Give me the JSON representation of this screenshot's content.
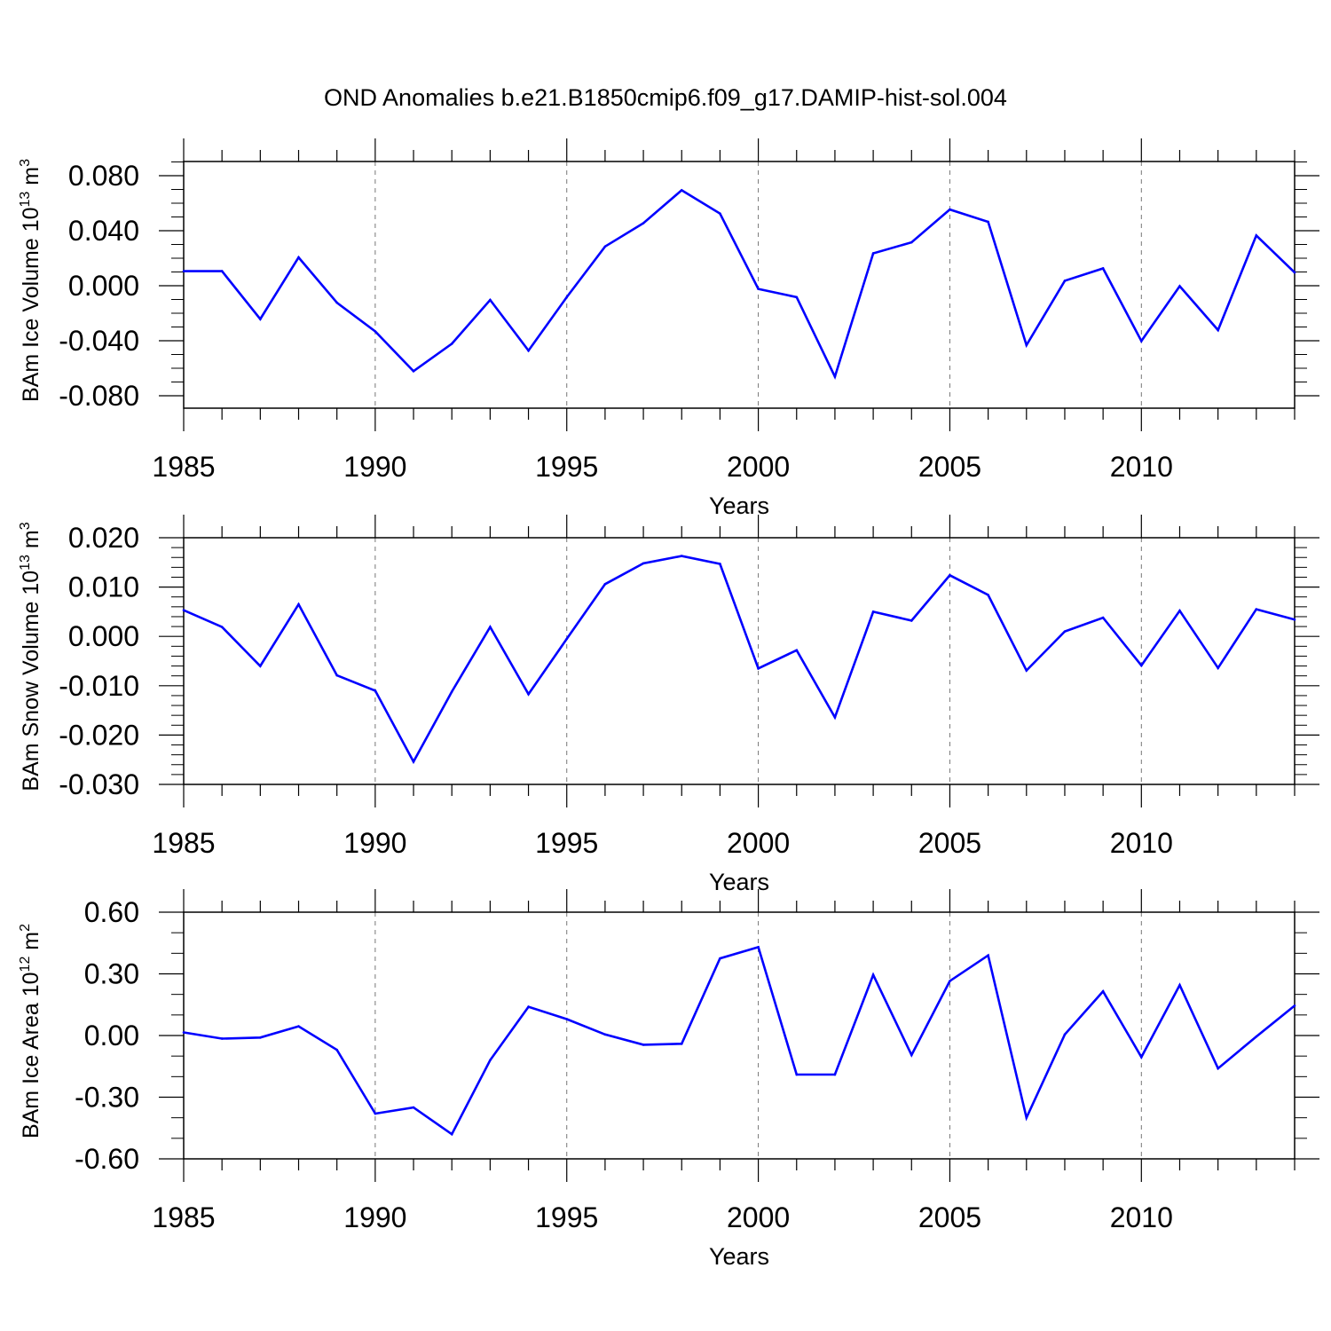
{
  "title": "OND Anomalies b.e21.B1850cmip6.f09_g17.DAMIP-hist-sol.004",
  "colors": {
    "line": "#0000ff",
    "axis": "#000000",
    "grid": "#777777"
  },
  "chart_data": [
    {
      "type": "line",
      "ylabel_main": "BAm Ice Volume 10",
      "ylabel_exp": "13",
      "ylabel_unit": " m",
      "ylabel_unit_exp": "3",
      "xlabel": "Years",
      "xlim": [
        1985,
        2014
      ],
      "ylim": [
        -0.09,
        0.09
      ],
      "xticks": [
        "1985",
        "1990",
        "1995",
        "2000",
        "2005",
        "2010"
      ],
      "yticks": [
        "0.080",
        "0.040",
        "0.000",
        "-0.040",
        "-0.080"
      ],
      "grid": "vertical dashed at labeled years",
      "series": [
        {
          "x": [
            1985,
            1986,
            1987,
            1988,
            1989,
            1990,
            1991,
            1992,
            1993,
            1994,
            1995,
            1996,
            1997,
            1998,
            1999,
            2000,
            2001,
            2002,
            2003,
            2004,
            2005,
            2006,
            2007,
            2008,
            2009,
            2010,
            2011,
            2012,
            2013,
            2014
          ],
          "values": [
            0.01,
            0.01,
            -0.025,
            0.02,
            -0.013,
            -0.034,
            -0.063,
            -0.043,
            -0.011,
            -0.048,
            -0.009,
            0.028,
            0.045,
            0.069,
            0.052,
            -0.003,
            -0.009,
            -0.067,
            0.023,
            0.031,
            0.055,
            0.046,
            -0.044,
            0.003,
            0.012,
            -0.041,
            -0.001,
            -0.033,
            0.036,
            0.009
          ]
        }
      ]
    },
    {
      "type": "line",
      "ylabel_main": "BAm Snow Volume 10",
      "ylabel_exp": "13",
      "ylabel_unit": " m",
      "ylabel_unit_exp": "3",
      "xlabel": "Years",
      "xlim": [
        1985,
        2014
      ],
      "ylim": [
        -0.03,
        0.02
      ],
      "xticks": [
        "1985",
        "1990",
        "1995",
        "2000",
        "2005",
        "2010"
      ],
      "yticks": [
        "0.020",
        "0.010",
        "0.000",
        "-0.010",
        "-0.020",
        "-0.030"
      ],
      "grid": "vertical dashed at labeled years",
      "series": [
        {
          "x": [
            1985,
            1986,
            1987,
            1988,
            1989,
            1990,
            1991,
            1992,
            1993,
            1994,
            1995,
            1996,
            1997,
            1998,
            1999,
            2000,
            2001,
            2002,
            2003,
            2004,
            2005,
            2006,
            2007,
            2008,
            2009,
            2010,
            2011,
            2012,
            2013,
            2014
          ],
          "values": [
            0.0053,
            0.0019,
            -0.006,
            0.0065,
            -0.0079,
            -0.011,
            -0.0254,
            -0.0112,
            0.0019,
            -0.0117,
            -0.0005,
            0.0106,
            0.0148,
            0.0163,
            0.0147,
            -0.0065,
            -0.0028,
            -0.0164,
            0.005,
            0.0032,
            0.0124,
            0.0084,
            -0.0069,
            0.001,
            0.0038,
            -0.0059,
            0.0052,
            -0.0064,
            0.0055,
            0.0034
          ]
        }
      ]
    },
    {
      "type": "line",
      "ylabel_main": "BAm Ice Area 10",
      "ylabel_exp": "12",
      "ylabel_unit": " m",
      "ylabel_unit_exp": "2",
      "xlabel": "Years",
      "xlim": [
        1985,
        2014
      ],
      "ylim": [
        -0.6,
        0.6
      ],
      "xticks": [
        "1985",
        "1990",
        "1995",
        "2000",
        "2005",
        "2010"
      ],
      "yticks": [
        "0.60",
        "0.30",
        "0.00",
        "-0.30",
        "-0.60"
      ],
      "grid": "vertical dashed at labeled years",
      "series": [
        {
          "x": [
            1985,
            1986,
            1987,
            1988,
            1989,
            1990,
            1991,
            1992,
            1993,
            1994,
            1995,
            1996,
            1997,
            1998,
            1999,
            2000,
            2001,
            2002,
            2003,
            2004,
            2005,
            2006,
            2007,
            2008,
            2009,
            2010,
            2011,
            2012,
            2013,
            2014
          ],
          "values": [
            0.015,
            -0.015,
            -0.01,
            0.045,
            -0.07,
            -0.38,
            -0.35,
            -0.48,
            -0.12,
            0.14,
            0.08,
            0.005,
            -0.045,
            -0.04,
            0.375,
            0.43,
            -0.19,
            -0.19,
            0.295,
            -0.095,
            0.265,
            0.39,
            -0.4,
            0.005,
            0.215,
            -0.105,
            0.245,
            -0.16,
            -0.005,
            0.145
          ]
        }
      ]
    }
  ]
}
